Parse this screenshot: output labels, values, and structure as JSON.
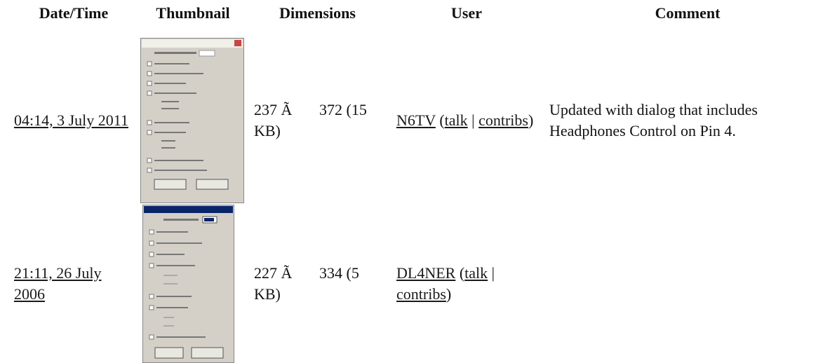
{
  "header": [
    "Date/Time",
    "Thumbnail",
    "Dimensions",
    "User",
    "Comment"
  ],
  "rows": [
    {
      "date": "04:14, 3 July 2011",
      "dims": [
        "237 Ã",
        "372 (15",
        "KB)"
      ],
      "user": [
        {
          "text": "N6TV",
          "link": true
        },
        {
          "text": " (",
          "link": false
        },
        {
          "text": "talk",
          "link": true
        },
        {
          "text": " | ",
          "link": false
        },
        {
          "text": "contribs",
          "link": true
        },
        {
          "text": ")",
          "link": false
        }
      ],
      "comment": "Updated with dialog that includes Headphones Control on Pin 4."
    },
    {
      "date": "21:11, 26 July 2006",
      "dims": [
        "227 Ã",
        "334 (5",
        "KB)"
      ],
      "user": [
        {
          "text": "DL4NER",
          "link": true
        },
        {
          "text": " (",
          "link": false
        },
        {
          "text": "talk",
          "link": true
        },
        {
          "text": " | ",
          "link": false
        },
        {
          "text": "contribs",
          "link": true
        },
        {
          "text": ")",
          "link": false
        }
      ],
      "comment": ""
    }
  ]
}
